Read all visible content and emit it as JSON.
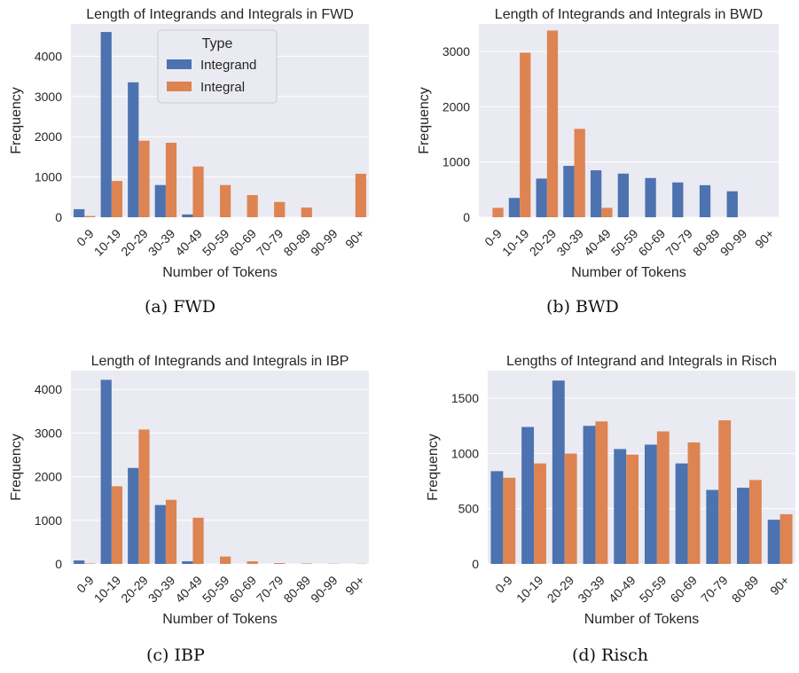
{
  "chart_data": [
    {
      "type": "bar",
      "title": "Length of Integrands and Integrals in FWD",
      "caption": "(a) FWD",
      "xlabel": "Number of Tokens",
      "ylabel": "Frequency",
      "categories": [
        "0-9",
        "10-19",
        "20-29",
        "30-39",
        "40-49",
        "50-59",
        "60-69",
        "70-79",
        "80-89",
        "90-99",
        "90+"
      ],
      "ylim": [
        0,
        4800
      ],
      "yticks": [
        0,
        1000,
        2000,
        3000,
        4000
      ],
      "grid": true,
      "legend": {
        "title": "Type",
        "placement": "top-center"
      },
      "series": [
        {
          "name": "Integrand",
          "color": "#4c72b0",
          "values": [
            200,
            4600,
            3350,
            800,
            70,
            0,
            0,
            0,
            0,
            0,
            0
          ]
        },
        {
          "name": "Integral",
          "color": "#dd8452",
          "values": [
            30,
            900,
            1900,
            1850,
            1260,
            800,
            550,
            380,
            240,
            0,
            1080
          ]
        }
      ]
    },
    {
      "type": "bar",
      "title": "Length of Integrands and Integrals in BWD",
      "caption": "(b) BWD",
      "xlabel": "Number of Tokens",
      "ylabel": "Frequency",
      "categories": [
        "0-9",
        "10-19",
        "20-29",
        "30-39",
        "40-49",
        "50-59",
        "60-69",
        "70-79",
        "80-89",
        "90-99",
        "90+"
      ],
      "ylim": [
        0,
        3500
      ],
      "yticks": [
        0,
        1000,
        2000,
        3000
      ],
      "grid": true,
      "series": [
        {
          "name": "Integrand",
          "color": "#4c72b0",
          "values": [
            0,
            350,
            700,
            930,
            850,
            790,
            710,
            630,
            580,
            470,
            0
          ]
        },
        {
          "name": "Integral",
          "color": "#dd8452",
          "values": [
            170,
            2980,
            3380,
            1600,
            170,
            0,
            0,
            0,
            0,
            0,
            0
          ]
        }
      ]
    },
    {
      "type": "bar",
      "title": "Length of Integrands and Integrals in IBP",
      "caption": "(c) IBP",
      "xlabel": "Number of Tokens",
      "ylabel": "Frequency",
      "categories": [
        "0-9",
        "10-19",
        "20-29",
        "30-39",
        "40-49",
        "50-59",
        "60-69",
        "70-79",
        "80-89",
        "90-99",
        "90+"
      ],
      "ylim": [
        0,
        4430
      ],
      "yticks": [
        0,
        1000,
        2000,
        3000,
        4000
      ],
      "grid": true,
      "series": [
        {
          "name": "Integrand",
          "color": "#4c72b0",
          "values": [
            80,
            4220,
            2200,
            1350,
            60,
            0,
            0,
            0,
            0,
            0,
            0
          ]
        },
        {
          "name": "Integral",
          "color": "#dd8452",
          "values": [
            10,
            1780,
            3080,
            1470,
            1060,
            170,
            60,
            20,
            10,
            5,
            5
          ]
        }
      ]
    },
    {
      "type": "bar",
      "title": "Lengths of Integrand and Integrals in Risch",
      "caption": "(d) Risch",
      "xlabel": "Number of Tokens",
      "ylabel": "Frequency",
      "categories": [
        "0-9",
        "10-19",
        "20-29",
        "30-39",
        "40-49",
        "50-59",
        "60-69",
        "70-79",
        "80-89",
        "90+"
      ],
      "ylim": [
        0,
        1750
      ],
      "yticks": [
        0,
        500,
        1000,
        1500
      ],
      "grid": true,
      "series": [
        {
          "name": "Integrand",
          "color": "#4c72b0",
          "values": [
            840,
            1240,
            1660,
            1250,
            1040,
            1080,
            910,
            670,
            690,
            400
          ]
        },
        {
          "name": "Integral",
          "color": "#dd8452",
          "values": [
            780,
            910,
            1000,
            1290,
            990,
            1200,
            1100,
            1300,
            760,
            450
          ]
        }
      ]
    }
  ]
}
